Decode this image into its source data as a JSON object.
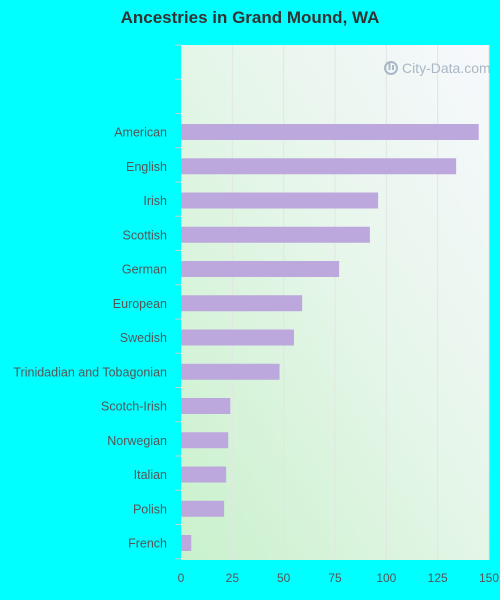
{
  "chart_data": {
    "type": "bar",
    "orientation": "horizontal",
    "title": "Ancestries in Grand Mound, WA",
    "categories": [
      "American",
      "English",
      "Irish",
      "Scottish",
      "German",
      "European",
      "Swedish",
      "Trinidadian and Tobagonian",
      "Scotch-Irish",
      "Norwegian",
      "Italian",
      "Polish",
      "French"
    ],
    "values": [
      145,
      134,
      96,
      92,
      77,
      59,
      55,
      48,
      24,
      23,
      22,
      21,
      5
    ],
    "xlim": [
      0,
      150
    ],
    "xticks": [
      0,
      25,
      50,
      75,
      100,
      125,
      150
    ],
    "grid": true,
    "bar_color": "#bca8dc",
    "legend": "none"
  },
  "watermark": {
    "text": "City-Data.com"
  },
  "colors": {
    "background": "#00ffff"
  }
}
